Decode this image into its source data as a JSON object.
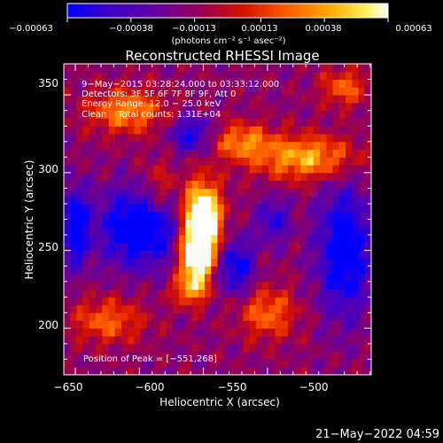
{
  "chart_data": {
    "type": "heatmap",
    "title": "Reconstructed RHESSI Image",
    "xlabel": "Heliocentric X (arcsec)",
    "ylabel": "Heliocentric Y (arcsec)",
    "xlim": [
      -659,
      -419
    ],
    "ylim": [
      170,
      370
    ],
    "x_ticks": [
      -650,
      -600,
      -550,
      -500
    ],
    "x_tick_labels": [
      "−650",
      "−600",
      "−550",
      "−500"
    ],
    "y_ticks": [
      200,
      250,
      300,
      350
    ],
    "y_tick_labels": [
      "200",
      "250",
      "300",
      "350"
    ],
    "colorbar": {
      "range": [
        -0.00063,
        0.00063
      ],
      "tick_values": [
        -0.00063,
        -0.00038,
        -0.00013,
        0.00013,
        0.00038,
        0.00063
      ],
      "tick_labels": [
        "−0.00063",
        "−0.00038",
        "−0.00013",
        "0.00013",
        "0.00038",
        "0.00063"
      ],
      "unit_label": "(photons cm⁻² s⁻¹ asec⁻²)",
      "colormap": [
        "#0000ff",
        "#3300cc",
        "#550099",
        "#770088",
        "#aa0033",
        "#dd1100",
        "#ff5500",
        "#ffaa00",
        "#ffee66",
        "#ffffff"
      ]
    },
    "annotations": [
      "9−May−2015 03:28:24.000 to 03:33:12.000",
      "Detectors: 3F 5F 6F 7F 8F 9F, Att 0",
      "Energy Range: 12.0 − 25.0 keV",
      "Clean    Total counts: 1.31E+04"
    ],
    "peak_label": "Position of Peak = [−551,268]",
    "peak": [
      -551,
      268
    ]
  },
  "footer": {
    "date": "21−May−2022 04:59"
  }
}
